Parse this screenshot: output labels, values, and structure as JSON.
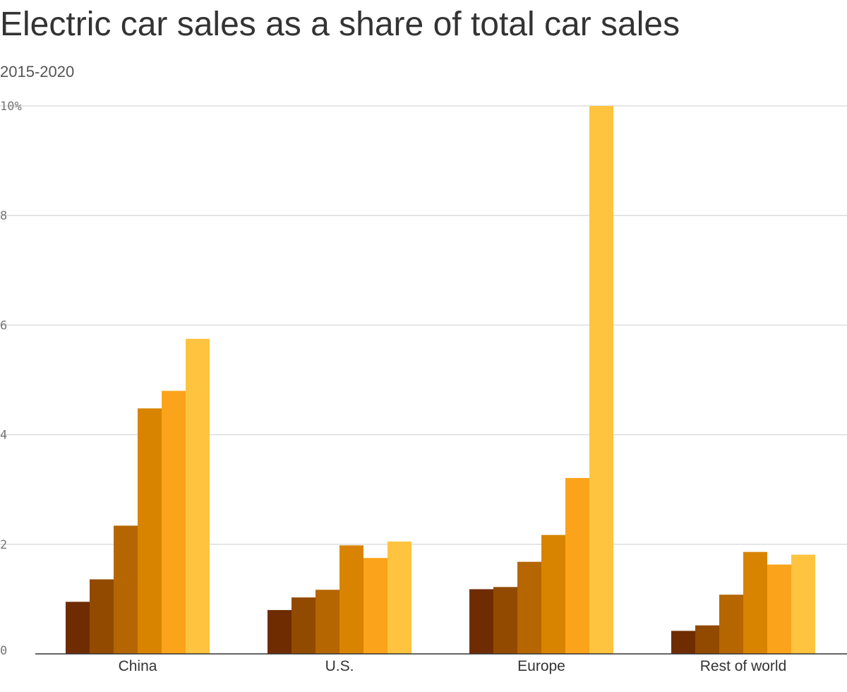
{
  "chart_data": {
    "type": "bar",
    "title": "Electric car sales as a share of total car sales",
    "subtitle": "2015-2020",
    "xlabel": "",
    "ylabel": "",
    "ylim": [
      0,
      10
    ],
    "yticks": [
      {
        "value": 0,
        "label": "0"
      },
      {
        "value": 2,
        "label": "2"
      },
      {
        "value": 4,
        "label": "4"
      },
      {
        "value": 6,
        "label": "6"
      },
      {
        "value": 8,
        "label": "8"
      },
      {
        "value": 10,
        "label": "10%"
      }
    ],
    "grid": true,
    "legend": "none",
    "categories": [
      "China",
      "U.S.",
      "Europe",
      "Rest of world"
    ],
    "series": [
      {
        "color": "#6f2c00",
        "values": [
          0.95,
          0.8,
          1.18,
          0.42
        ]
      },
      {
        "color": "#924a00",
        "values": [
          1.36,
          1.03,
          1.22,
          0.52
        ]
      },
      {
        "color": "#b56600",
        "values": [
          2.34,
          1.17,
          1.68,
          1.08
        ]
      },
      {
        "color": "#d88400",
        "values": [
          4.48,
          1.98,
          2.17,
          1.86
        ]
      },
      {
        "color": "#fba31a",
        "values": [
          4.8,
          1.75,
          3.21,
          1.63
        ]
      },
      {
        "color": "#fec43f",
        "values": [
          5.75,
          2.05,
          10.0,
          1.81
        ]
      }
    ],
    "colors": {
      "gridline": "#dddddd",
      "baseline": "#333333",
      "tick_text": "#777777",
      "category_text": "#333333"
    }
  }
}
